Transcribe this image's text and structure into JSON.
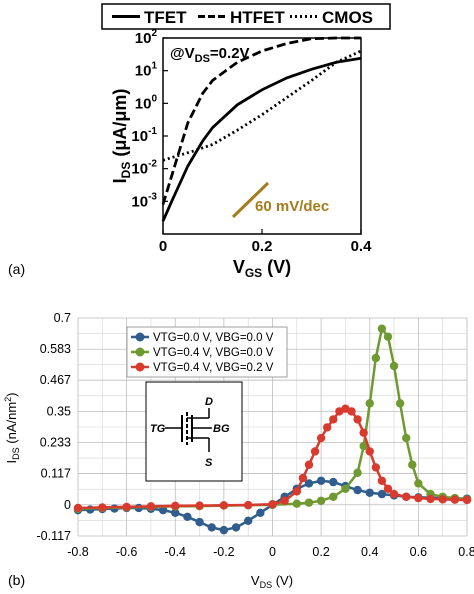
{
  "chart_data": [
    {
      "panel_label": "(a)",
      "type": "line",
      "legend": [
        "TFET",
        "HTFET",
        "CMOS"
      ],
      "legend_placement": "top",
      "xlabel_main": "V",
      "xlabel_sub": "GS",
      "xlabel_unit": " (V)",
      "ylabel_main": "I",
      "ylabel_sub": "DS",
      "ylabel_unit": " (μA/μm)",
      "annotation_main": "@V",
      "annotation_sub": "DS",
      "annotation_tail": "=0.2V",
      "slope_label": "60 mV/dec",
      "slope_color": "#a57c1b",
      "xlim": [
        0,
        0.4
      ],
      "ylim_exp": [
        -4,
        2
      ],
      "y_scale": "log",
      "x_ticks": [
        "0",
        "0.2",
        "0.4"
      ],
      "y_ticks": [
        {
          "base": "10",
          "exp": "-3"
        },
        {
          "base": "10",
          "exp": "-2"
        },
        {
          "base": "10",
          "exp": "-1"
        },
        {
          "base": "10",
          "exp": "0"
        },
        {
          "base": "10",
          "exp": "1"
        },
        {
          "base": "10",
          "exp": "2"
        }
      ],
      "series": [
        {
          "name": "TFET",
          "style": "solid",
          "x": [
            0,
            0.02,
            0.05,
            0.08,
            0.1,
            0.15,
            0.2,
            0.25,
            0.3,
            0.35,
            0.4
          ],
          "y": [
            0.00025,
            0.0012,
            0.012,
            0.07,
            0.18,
            0.9,
            2.6,
            6,
            11,
            18,
            24
          ]
        },
        {
          "name": "HTFET",
          "style": "dashed",
          "x": [
            0,
            0.02,
            0.05,
            0.08,
            0.1,
            0.15,
            0.2,
            0.25,
            0.3,
            0.35,
            0.4
          ],
          "y": [
            0.0008,
            0.008,
            0.25,
            2,
            5,
            18,
            40,
            68,
            95,
            120,
            140
          ]
        },
        {
          "name": "CMOS",
          "style": "dotted",
          "x": [
            0,
            0.03,
            0.06,
            0.1,
            0.15,
            0.2,
            0.25,
            0.3,
            0.35,
            0.4
          ],
          "y": [
            0.018,
            0.025,
            0.034,
            0.055,
            0.15,
            0.45,
            1.5,
            5,
            18,
            40
          ]
        }
      ]
    },
    {
      "panel_label": "(b)",
      "type": "line",
      "legend": [
        "VTG=0.0 V, VBG=0.0 V",
        "VTG=0.4 V, VBG=0.0 V",
        "VTG=0.4 V, VBG=0.2 V"
      ],
      "legend_placement": "top-left",
      "xlabel_main": "V",
      "xlabel_sub": "DS",
      "xlabel_unit": " (V)",
      "ylabel_main": "I",
      "ylabel_sub": "DS",
      "ylabel_unit": " (nA/nm",
      "ylabel_sup": "2",
      "ylabel_close": ")",
      "xlim": [
        -0.8,
        0.8
      ],
      "ylim": [
        -0.117,
        0.7
      ],
      "grid": true,
      "x_ticks": [
        "-0.8",
        "-0.6",
        "-0.4",
        "-0.2",
        "0",
        "0.2",
        "0.4",
        "0.6",
        "0.8"
      ],
      "y_ticks": [
        "-0.117",
        "0",
        "0.117",
        "0.233",
        "0.35",
        "0.467",
        "0.583",
        "0.7"
      ],
      "inset_labels": {
        "tg": "TG",
        "d": "D",
        "bg": "BG",
        "s": "S"
      },
      "series": [
        {
          "name": "VTG=0.0 V, VBG=0.0 V",
          "color": "#2e5d8e",
          "x": [
            -0.8,
            -0.75,
            -0.7,
            -0.65,
            -0.6,
            -0.55,
            -0.5,
            -0.45,
            -0.4,
            -0.35,
            -0.3,
            -0.25,
            -0.2,
            -0.15,
            -0.1,
            -0.05,
            0,
            0.05,
            0.1,
            0.15,
            0.2,
            0.25,
            0.3,
            0.35,
            0.4,
            0.45,
            0.5,
            0.55,
            0.6,
            0.65,
            0.7,
            0.75,
            0.8
          ],
          "y": [
            -0.02,
            -0.018,
            -0.016,
            -0.014,
            -0.012,
            -0.012,
            -0.015,
            -0.02,
            -0.03,
            -0.045,
            -0.065,
            -0.085,
            -0.095,
            -0.085,
            -0.06,
            -0.03,
            0,
            0.03,
            0.06,
            0.08,
            0.09,
            0.085,
            0.07,
            0.055,
            0.045,
            0.04,
            0.035,
            0.03,
            0.028,
            0.026,
            0.025,
            0.024,
            0.023
          ]
        },
        {
          "name": "VTG=0.4 V, VBG=0.0 V",
          "color": "#6e9a31",
          "x": [
            -0.8,
            -0.7,
            -0.6,
            -0.5,
            -0.4,
            -0.3,
            -0.2,
            -0.1,
            0,
            0.1,
            0.15,
            0.2,
            0.25,
            0.3,
            0.35,
            0.375,
            0.4,
            0.425,
            0.45,
            0.475,
            0.5,
            0.525,
            0.55,
            0.575,
            0.6,
            0.65,
            0.7,
            0.75,
            0.8
          ],
          "y": [
            -0.015,
            -0.012,
            -0.01,
            -0.008,
            -0.006,
            -0.005,
            -0.003,
            -0.002,
            0,
            0.004,
            0.008,
            0.015,
            0.03,
            0.06,
            0.12,
            0.22,
            0.38,
            0.55,
            0.66,
            0.63,
            0.52,
            0.38,
            0.25,
            0.15,
            0.08,
            0.04,
            0.03,
            0.025,
            0.02
          ]
        },
        {
          "name": "VTG=0.4 V, VBG=0.2 V",
          "color": "#d83b2e",
          "x": [
            -0.8,
            -0.7,
            -0.6,
            -0.5,
            -0.4,
            -0.3,
            -0.2,
            -0.1,
            0,
            0.05,
            0.1,
            0.125,
            0.15,
            0.175,
            0.2,
            0.225,
            0.25,
            0.275,
            0.3,
            0.325,
            0.35,
            0.375,
            0.4,
            0.425,
            0.45,
            0.475,
            0.5,
            0.55,
            0.6,
            0.65,
            0.7,
            0.75,
            0.8
          ],
          "y": [
            -0.012,
            -0.01,
            -0.008,
            -0.006,
            -0.004,
            -0.003,
            -0.002,
            -0.001,
            0.002,
            0.015,
            0.05,
            0.1,
            0.15,
            0.2,
            0.25,
            0.29,
            0.32,
            0.35,
            0.36,
            0.35,
            0.32,
            0.27,
            0.2,
            0.14,
            0.09,
            0.06,
            0.04,
            0.03,
            0.025,
            0.022,
            0.02,
            0.019,
            0.018
          ]
        }
      ]
    }
  ]
}
